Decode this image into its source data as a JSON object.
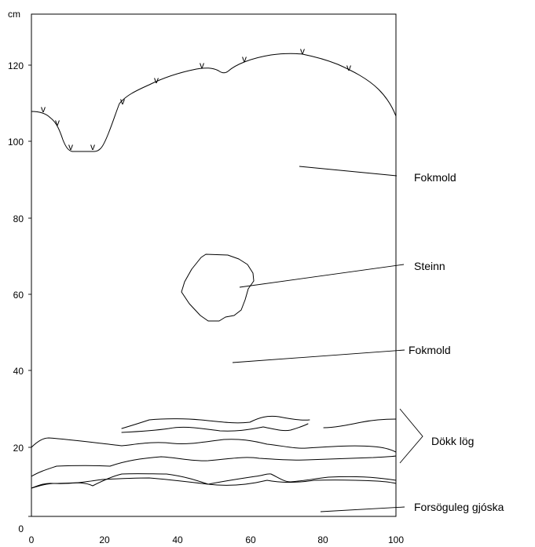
{
  "axes": {
    "y_unit": "cm",
    "x_range": [
      0,
      100
    ],
    "y_range": [
      0,
      130
    ],
    "x_ticks": [
      "0",
      "20",
      "40",
      "60",
      "80",
      "100"
    ],
    "y_ticks": [
      "0",
      "20",
      "40",
      "60",
      "80",
      "100",
      "120"
    ]
  },
  "labels": {
    "fokmold_top": "Fokmold",
    "steinn": "Steinn",
    "fokmold_lower": "Fokmold",
    "dokk_log": "Dökk lög",
    "forsoguleg_gjoska": "Forsöguleg gjóska"
  },
  "surface_marker": "v",
  "surface_markers_x": [
    3,
    7.5,
    11,
    17,
    25,
    34,
    47,
    58,
    74.5,
    87
  ]
}
